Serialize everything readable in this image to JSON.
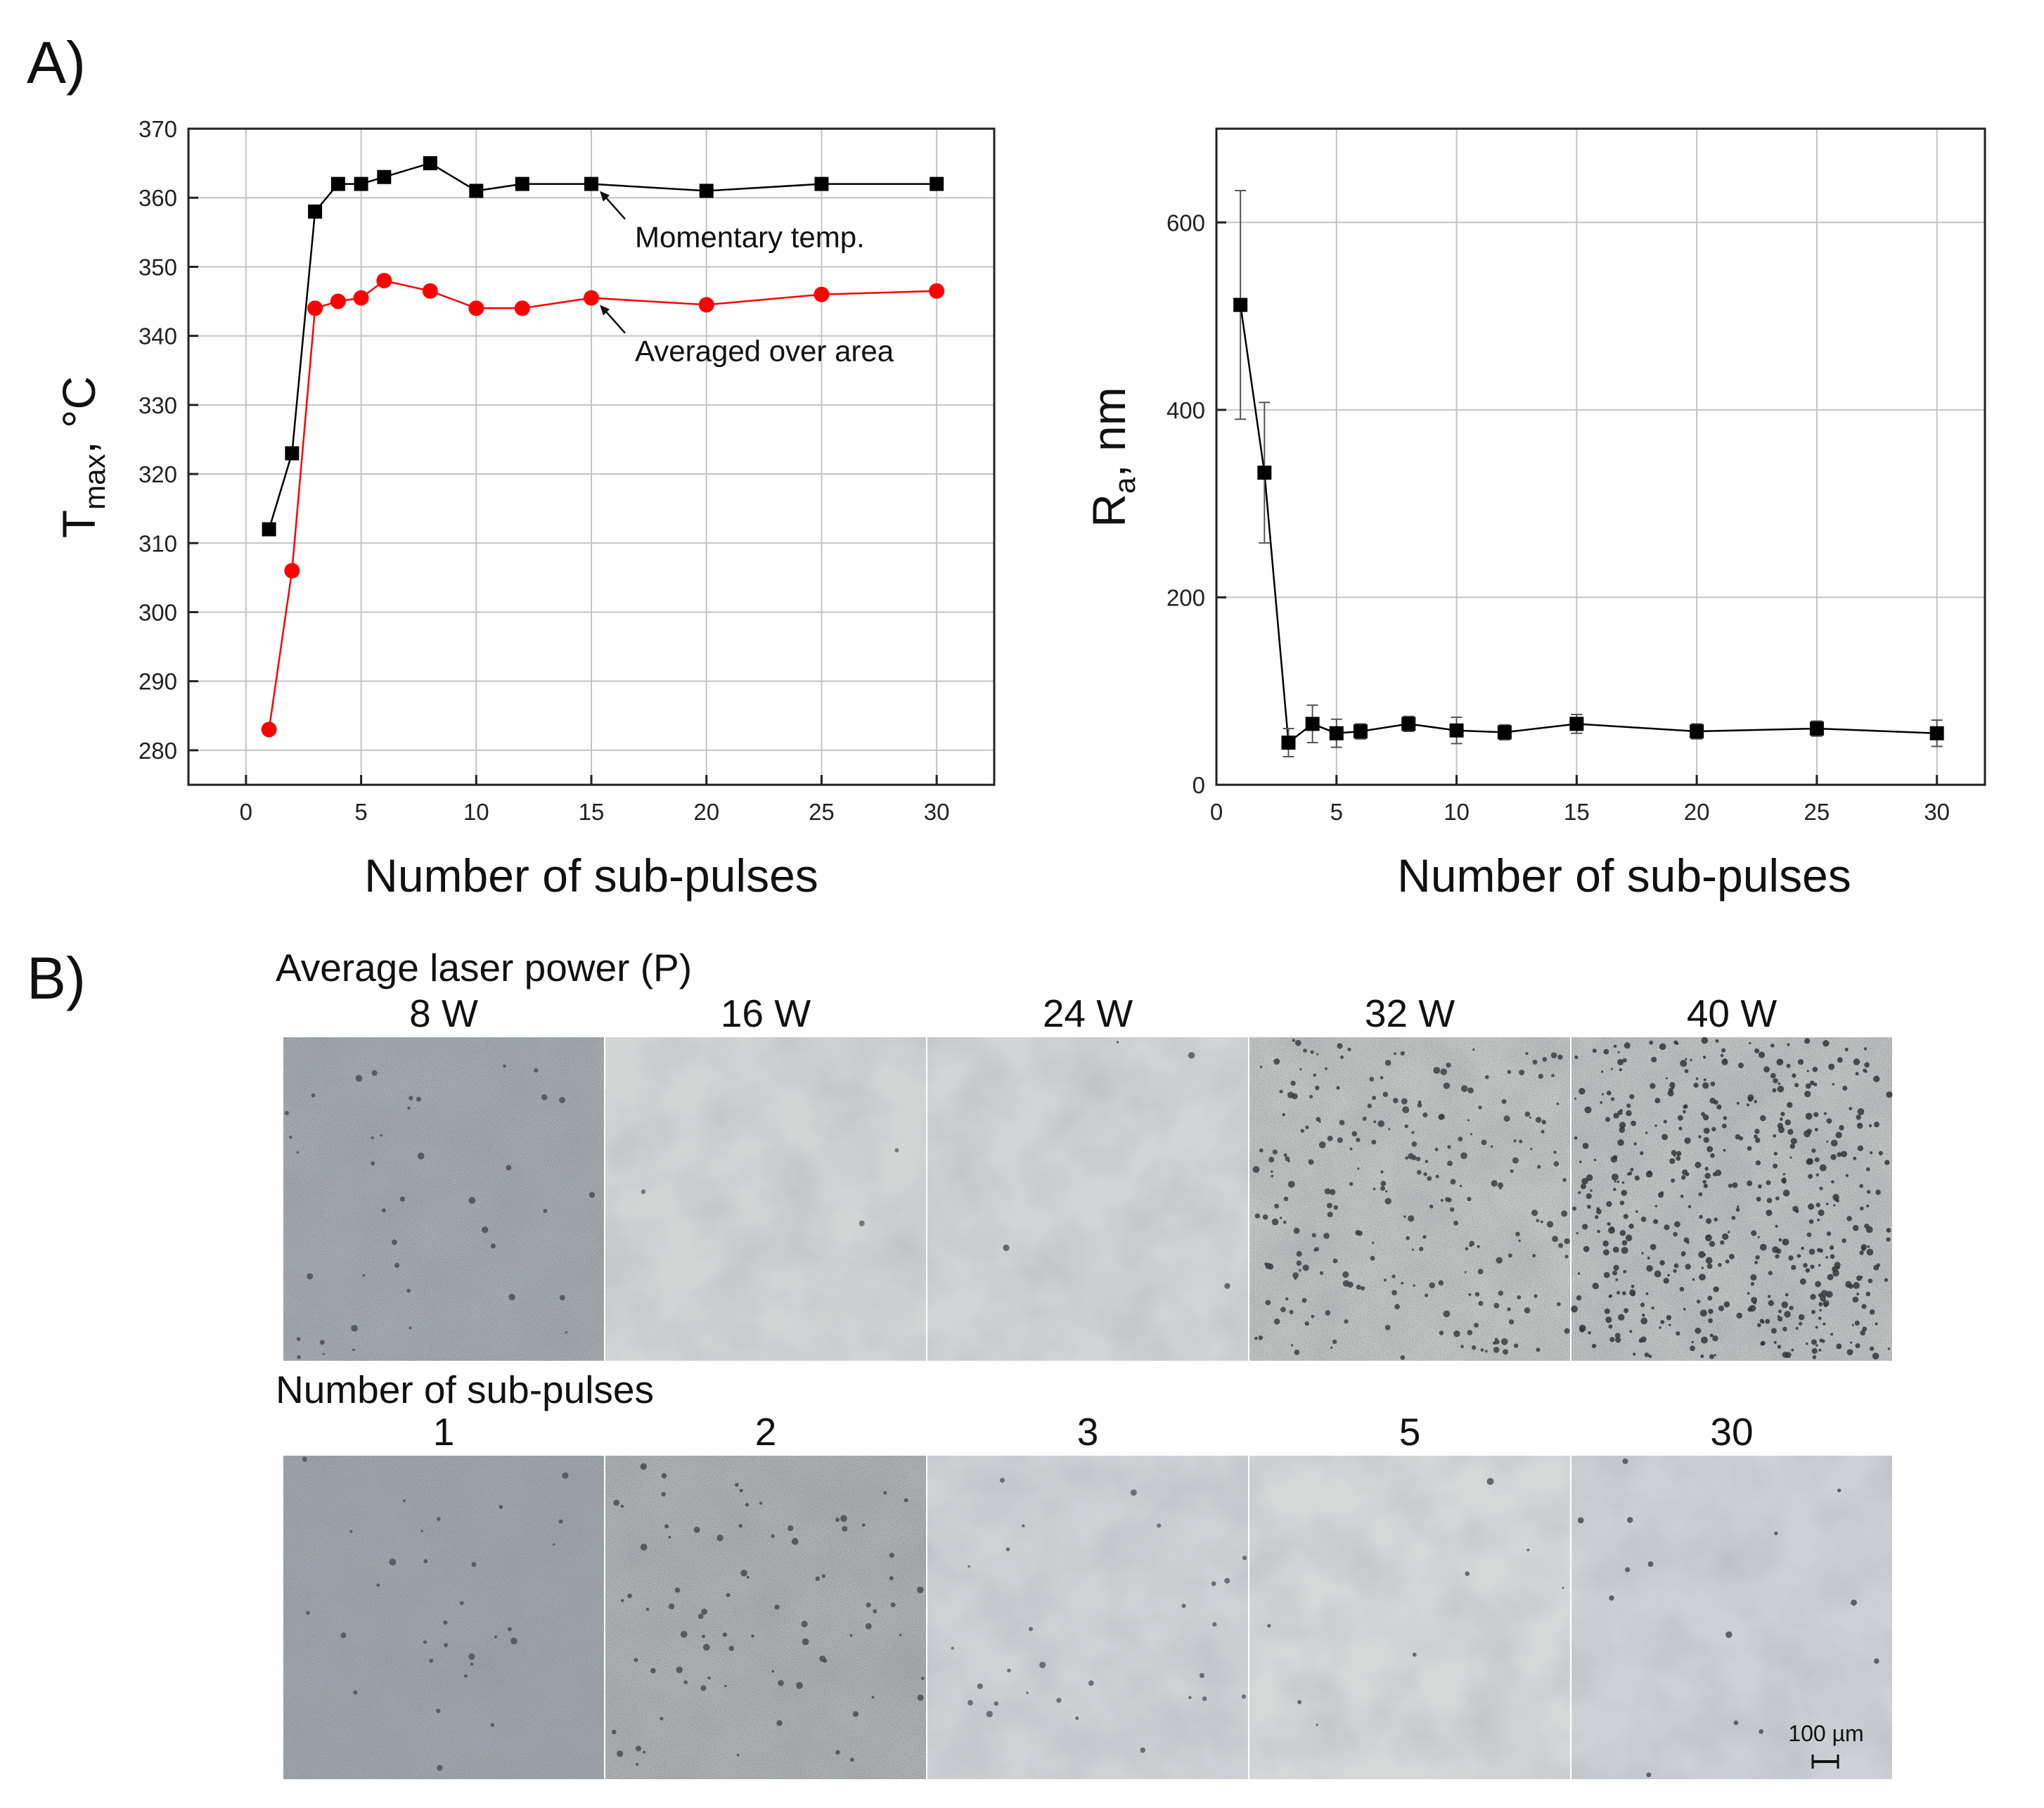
{
  "panel_a_label": "A)",
  "panel_b_label": "B)",
  "chart_data": [
    {
      "type": "line",
      "xlabel": "Number of sub-pulses",
      "ylabel": "T_max, °C",
      "ylabel_main": "T",
      "ylabel_sub": "max",
      "ylabel_unit": ", °C",
      "xlim": [
        -2.5,
        32.5
      ],
      "ylim": [
        275,
        370
      ],
      "xticks": [
        0,
        5,
        10,
        15,
        20,
        25,
        30
      ],
      "yticks": [
        280,
        290,
        300,
        310,
        320,
        330,
        340,
        350,
        360,
        370
      ],
      "grid": true,
      "series": [
        {
          "name": "Momentary temp.",
          "color": "#000000",
          "marker": "square",
          "x": [
            1,
            2,
            3,
            4,
            5,
            6,
            8,
            10,
            12,
            15,
            20,
            25,
            30
          ],
          "y": [
            312,
            323,
            358,
            362,
            362,
            363,
            365,
            361,
            362,
            362,
            361,
            362,
            362
          ]
        },
        {
          "name": "Averaged over area",
          "color": "#ff0000",
          "marker": "circle",
          "x": [
            1,
            2,
            3,
            4,
            5,
            6,
            8,
            10,
            12,
            15,
            20,
            25,
            30
          ],
          "y": [
            283,
            306,
            344,
            345,
            345.5,
            348,
            346.5,
            344,
            344,
            345.5,
            344.5,
            346,
            346.5
          ]
        }
      ],
      "annotations": [
        {
          "text": "Momentary temp.",
          "series": 0,
          "at_x": 15
        },
        {
          "text": "Averaged over area",
          "series": 1,
          "at_x": 15
        }
      ]
    },
    {
      "type": "line",
      "xlabel": "Number of sub-pulses",
      "ylabel": "R_a, nm",
      "ylabel_main": "R",
      "ylabel_sub": "a",
      "ylabel_unit": ", nm",
      "xlim": [
        0,
        32
      ],
      "ylim": [
        0,
        700
      ],
      "xticks": [
        0,
        5,
        10,
        15,
        20,
        25,
        30
      ],
      "yticks": [
        0,
        200,
        400,
        600
      ],
      "grid": true,
      "series": [
        {
          "color": "#000000",
          "marker": "square",
          "x": [
            1,
            2,
            3,
            4,
            5,
            6,
            8,
            10,
            12,
            15,
            20,
            25,
            30
          ],
          "y": [
            512,
            333,
            45,
            65,
            55,
            57,
            65,
            58,
            56,
            65,
            57,
            60,
            55
          ],
          "err": [
            122,
            75,
            15,
            20,
            15,
            8,
            8,
            14,
            8,
            10,
            8,
            8,
            14
          ]
        }
      ]
    }
  ],
  "micrographs": {
    "row1_title": "Average laser power (P)",
    "row1_labels": [
      "8 W",
      "16 W",
      "24 W",
      "32 W",
      "40 W"
    ],
    "row2_title": "Number of sub-pulses",
    "row2_labels": [
      "1",
      "2",
      "3",
      "5",
      "30"
    ],
    "scale_bar": "100 µm"
  }
}
